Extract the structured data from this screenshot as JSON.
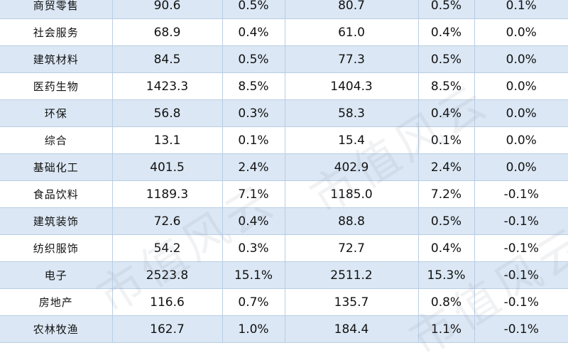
{
  "table": {
    "rows": [
      {
        "industry": "商贸零售",
        "v1": "90.6",
        "p1": "0.5%",
        "v2": "80.7",
        "p2": "0.5%",
        "chg": "0.1%"
      },
      {
        "industry": "社会服务",
        "v1": "68.9",
        "p1": "0.4%",
        "v2": "61.0",
        "p2": "0.4%",
        "chg": "0.0%"
      },
      {
        "industry": "建筑材料",
        "v1": "84.5",
        "p1": "0.5%",
        "v2": "77.3",
        "p2": "0.5%",
        "chg": "0.0%"
      },
      {
        "industry": "医药生物",
        "v1": "1423.3",
        "p1": "8.5%",
        "v2": "1404.3",
        "p2": "8.5%",
        "chg": "0.0%"
      },
      {
        "industry": "环保",
        "v1": "56.8",
        "p1": "0.3%",
        "v2": "58.3",
        "p2": "0.4%",
        "chg": "0.0%"
      },
      {
        "industry": "综合",
        "v1": "13.1",
        "p1": "0.1%",
        "v2": "15.4",
        "p2": "0.1%",
        "chg": "0.0%"
      },
      {
        "industry": "基础化工",
        "v1": "401.5",
        "p1": "2.4%",
        "v2": "402.9",
        "p2": "2.4%",
        "chg": "0.0%"
      },
      {
        "industry": "食品饮料",
        "v1": "1189.3",
        "p1": "7.1%",
        "v2": "1185.0",
        "p2": "7.2%",
        "chg": "-0.1%"
      },
      {
        "industry": "建筑装饰",
        "v1": "72.6",
        "p1": "0.4%",
        "v2": "88.8",
        "p2": "0.5%",
        "chg": "-0.1%"
      },
      {
        "industry": "纺织服饰",
        "v1": "54.2",
        "p1": "0.3%",
        "v2": "72.7",
        "p2": "0.4%",
        "chg": "-0.1%"
      },
      {
        "industry": "电子",
        "v1": "2523.8",
        "p1": "15.1%",
        "v2": "2511.2",
        "p2": "15.3%",
        "chg": "-0.1%"
      },
      {
        "industry": "房地产",
        "v1": "116.6",
        "p1": "0.7%",
        "v2": "135.7",
        "p2": "0.8%",
        "chg": "-0.1%"
      },
      {
        "industry": "农林牧渔",
        "v1": "162.7",
        "p1": "1.0%",
        "v2": "184.4",
        "p2": "1.1%",
        "chg": "-0.1%"
      }
    ]
  },
  "watermark": {
    "text": "市值风云"
  },
  "colors": {
    "band": "#dbe7f4",
    "grid": "#b9cde4"
  }
}
